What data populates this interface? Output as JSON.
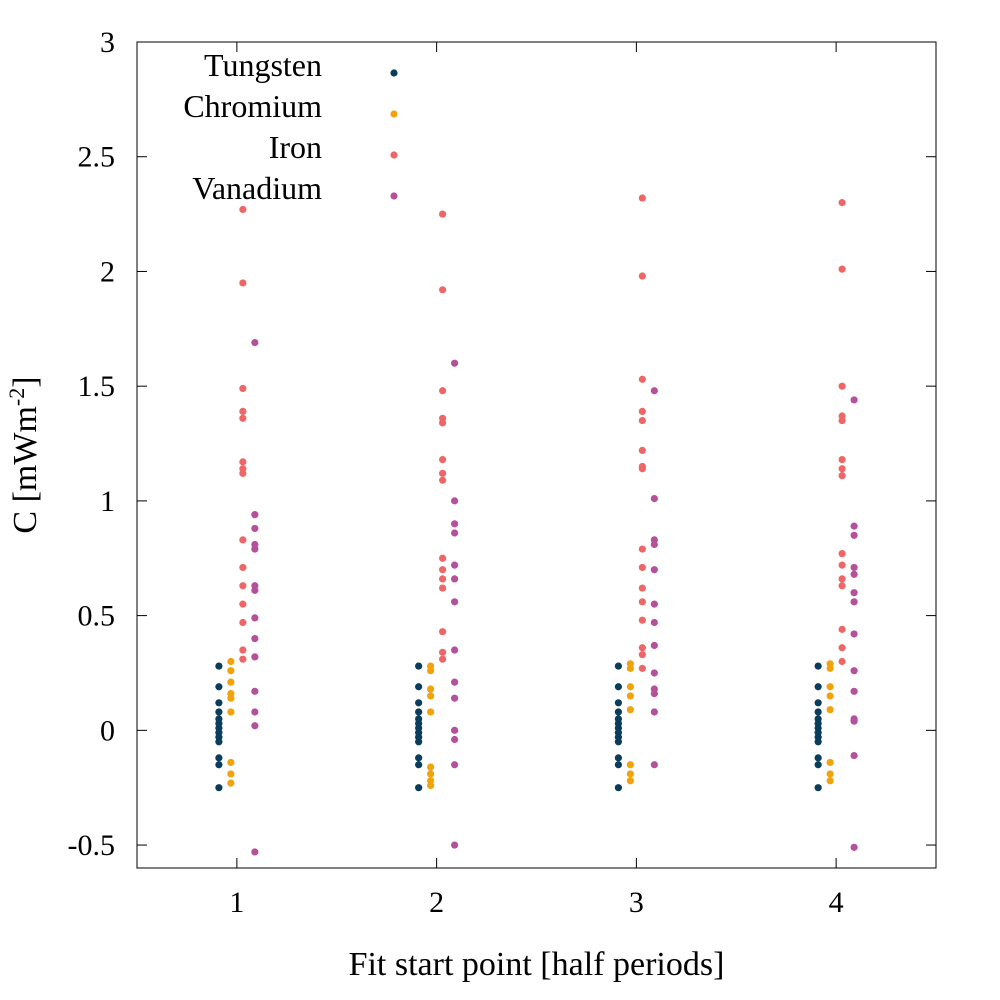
{
  "chart_data": {
    "type": "scatter",
    "xlabel": "Fit start point [half periods]",
    "ylabel": "C [mWm",
    "ylabel_sup": "-2",
    "ylabel_suffix": "]",
    "xlim": [
      0.5,
      4.5
    ],
    "ylim": [
      -0.6,
      3.0
    ],
    "x_ticks": [
      1,
      2,
      3,
      4
    ],
    "y_ticks": [
      -0.5,
      0,
      0.5,
      1,
      1.5,
      2,
      2.5,
      3
    ],
    "y_tick_labels": [
      "-0.5",
      "0",
      "0.5",
      "1",
      "1.5",
      "2",
      "2.5",
      "3"
    ],
    "grid": false,
    "legend_position": "top-left",
    "series": [
      {
        "name": "Tungsten",
        "color": "#0a3d5c",
        "x_offset": -0.09,
        "points": [
          [
            1,
            0.28
          ],
          [
            1,
            0.19
          ],
          [
            1,
            0.12
          ],
          [
            1,
            0.08
          ],
          [
            1,
            0.05
          ],
          [
            1,
            0.03
          ],
          [
            1,
            0.01
          ],
          [
            1,
            -0.01
          ],
          [
            1,
            -0.03
          ],
          [
            1,
            -0.05
          ],
          [
            1,
            -0.12
          ],
          [
            1,
            -0.15
          ],
          [
            1,
            -0.25
          ],
          [
            2,
            0.28
          ],
          [
            2,
            0.19
          ],
          [
            2,
            0.12
          ],
          [
            2,
            0.08
          ],
          [
            2,
            0.05
          ],
          [
            2,
            0.03
          ],
          [
            2,
            0.01
          ],
          [
            2,
            -0.01
          ],
          [
            2,
            -0.03
          ],
          [
            2,
            -0.05
          ],
          [
            2,
            -0.12
          ],
          [
            2,
            -0.15
          ],
          [
            2,
            -0.25
          ],
          [
            3,
            0.28
          ],
          [
            3,
            0.19
          ],
          [
            3,
            0.12
          ],
          [
            3,
            0.08
          ],
          [
            3,
            0.05
          ],
          [
            3,
            0.03
          ],
          [
            3,
            0.01
          ],
          [
            3,
            -0.01
          ],
          [
            3,
            -0.03
          ],
          [
            3,
            -0.05
          ],
          [
            3,
            -0.12
          ],
          [
            3,
            -0.15
          ],
          [
            3,
            -0.25
          ],
          [
            4,
            0.28
          ],
          [
            4,
            0.19
          ],
          [
            4,
            0.12
          ],
          [
            4,
            0.08
          ],
          [
            4,
            0.05
          ],
          [
            4,
            0.03
          ],
          [
            4,
            0.01
          ],
          [
            4,
            -0.01
          ],
          [
            4,
            -0.03
          ],
          [
            4,
            -0.05
          ],
          [
            4,
            -0.12
          ],
          [
            4,
            -0.15
          ],
          [
            4,
            -0.25
          ]
        ]
      },
      {
        "name": "Chromium",
        "color": "#f0a30a",
        "x_offset": -0.03,
        "points": [
          [
            1,
            0.3
          ],
          [
            1,
            0.26
          ],
          [
            1,
            0.21
          ],
          [
            1,
            0.16
          ],
          [
            1,
            0.14
          ],
          [
            1,
            0.08
          ],
          [
            1,
            -0.14
          ],
          [
            1,
            -0.19
          ],
          [
            1,
            -0.23
          ],
          [
            2,
            0.28
          ],
          [
            2,
            0.26
          ],
          [
            2,
            0.18
          ],
          [
            2,
            0.15
          ],
          [
            2,
            0.08
          ],
          [
            2,
            -0.16
          ],
          [
            2,
            -0.19
          ],
          [
            2,
            -0.22
          ],
          [
            2,
            -0.24
          ],
          [
            3,
            0.29
          ],
          [
            3,
            0.27
          ],
          [
            3,
            0.19
          ],
          [
            3,
            0.15
          ],
          [
            3,
            0.09
          ],
          [
            3,
            -0.15
          ],
          [
            3,
            -0.19
          ],
          [
            3,
            -0.22
          ],
          [
            4,
            0.29
          ],
          [
            4,
            0.27
          ],
          [
            4,
            0.19
          ],
          [
            4,
            0.15
          ],
          [
            4,
            0.09
          ],
          [
            4,
            -0.14
          ],
          [
            4,
            -0.19
          ],
          [
            4,
            -0.22
          ]
        ]
      },
      {
        "name": "Iron",
        "color": "#ef6666",
        "x_offset": 0.03,
        "points": [
          [
            1,
            2.27
          ],
          [
            1,
            1.95
          ],
          [
            1,
            1.49
          ],
          [
            1,
            1.39
          ],
          [
            1,
            1.36
          ],
          [
            1,
            1.17
          ],
          [
            1,
            1.14
          ],
          [
            1,
            1.12
          ],
          [
            1,
            0.83
          ],
          [
            1,
            0.71
          ],
          [
            1,
            0.63
          ],
          [
            1,
            0.55
          ],
          [
            1,
            0.47
          ],
          [
            1,
            0.35
          ],
          [
            1,
            0.31
          ],
          [
            2,
            2.25
          ],
          [
            2,
            1.92
          ],
          [
            2,
            1.48
          ],
          [
            2,
            1.36
          ],
          [
            2,
            1.34
          ],
          [
            2,
            1.18
          ],
          [
            2,
            1.12
          ],
          [
            2,
            1.09
          ],
          [
            2,
            0.75
          ],
          [
            2,
            0.7
          ],
          [
            2,
            0.66
          ],
          [
            2,
            0.62
          ],
          [
            2,
            0.43
          ],
          [
            2,
            0.34
          ],
          [
            2,
            0.31
          ],
          [
            3,
            2.32
          ],
          [
            3,
            1.98
          ],
          [
            3,
            1.53
          ],
          [
            3,
            1.39
          ],
          [
            3,
            1.35
          ],
          [
            3,
            1.22
          ],
          [
            3,
            1.15
          ],
          [
            3,
            1.14
          ],
          [
            3,
            0.79
          ],
          [
            3,
            0.71
          ],
          [
            3,
            0.62
          ],
          [
            3,
            0.56
          ],
          [
            3,
            0.48
          ],
          [
            3,
            0.36
          ],
          [
            3,
            0.33
          ],
          [
            3,
            0.27
          ],
          [
            4,
            2.3
          ],
          [
            4,
            2.01
          ],
          [
            4,
            1.5
          ],
          [
            4,
            1.37
          ],
          [
            4,
            1.35
          ],
          [
            4,
            1.18
          ],
          [
            4,
            1.14
          ],
          [
            4,
            1.11
          ],
          [
            4,
            0.77
          ],
          [
            4,
            0.72
          ],
          [
            4,
            0.66
          ],
          [
            4,
            0.63
          ],
          [
            4,
            0.44
          ],
          [
            4,
            0.36
          ],
          [
            4,
            0.3
          ]
        ]
      },
      {
        "name": "Vanadium",
        "color": "#b5519a",
        "x_offset": 0.09,
        "points": [
          [
            1,
            1.69
          ],
          [
            1,
            0.94
          ],
          [
            1,
            0.88
          ],
          [
            1,
            0.81
          ],
          [
            1,
            0.79
          ],
          [
            1,
            0.63
          ],
          [
            1,
            0.61
          ],
          [
            1,
            0.49
          ],
          [
            1,
            0.4
          ],
          [
            1,
            0.32
          ],
          [
            1,
            0.17
          ],
          [
            1,
            0.08
          ],
          [
            1,
            0.02
          ],
          [
            1,
            -0.53
          ],
          [
            2,
            1.6
          ],
          [
            2,
            1.0
          ],
          [
            2,
            0.9
          ],
          [
            2,
            0.86
          ],
          [
            2,
            0.72
          ],
          [
            2,
            0.66
          ],
          [
            2,
            0.56
          ],
          [
            2,
            0.35
          ],
          [
            2,
            0.21
          ],
          [
            2,
            0.14
          ],
          [
            2,
            0.0
          ],
          [
            2,
            -0.04
          ],
          [
            2,
            -0.15
          ],
          [
            2,
            -0.5
          ],
          [
            3,
            1.48
          ],
          [
            3,
            1.01
          ],
          [
            3,
            0.83
          ],
          [
            3,
            0.81
          ],
          [
            3,
            0.7
          ],
          [
            3,
            0.55
          ],
          [
            3,
            0.47
          ],
          [
            3,
            0.37
          ],
          [
            3,
            0.25
          ],
          [
            3,
            0.18
          ],
          [
            3,
            0.16
          ],
          [
            3,
            0.08
          ],
          [
            3,
            -0.15
          ],
          [
            4,
            1.44
          ],
          [
            4,
            0.89
          ],
          [
            4,
            0.85
          ],
          [
            4,
            0.71
          ],
          [
            4,
            0.68
          ],
          [
            4,
            0.6
          ],
          [
            4,
            0.56
          ],
          [
            4,
            0.42
          ],
          [
            4,
            0.26
          ],
          [
            4,
            0.17
          ],
          [
            4,
            0.05
          ],
          [
            4,
            0.04
          ],
          [
            4,
            -0.11
          ],
          [
            4,
            -0.51
          ]
        ]
      }
    ]
  }
}
